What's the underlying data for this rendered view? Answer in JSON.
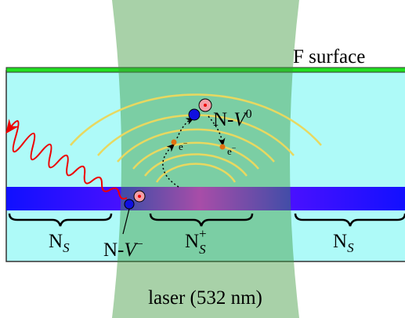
{
  "labels": {
    "f_surface": "F surface",
    "nv0": {
      "main": "N-",
      "var": "V",
      "sup": "0"
    },
    "nv_minus": {
      "main": "N-",
      "var": "V",
      "sup": "−"
    },
    "ns_plus": {
      "main": "N",
      "sub": "S",
      "sup": "+"
    },
    "ns_left": {
      "main": "N",
      "sub": "S"
    },
    "ns_right": {
      "main": "N",
      "sub": "S"
    },
    "electrons": [
      {
        "main": "e",
        "sup": "−"
      },
      {
        "main": "e",
        "sup": "−"
      }
    ],
    "laser": "laser (532 nm)"
  }
}
